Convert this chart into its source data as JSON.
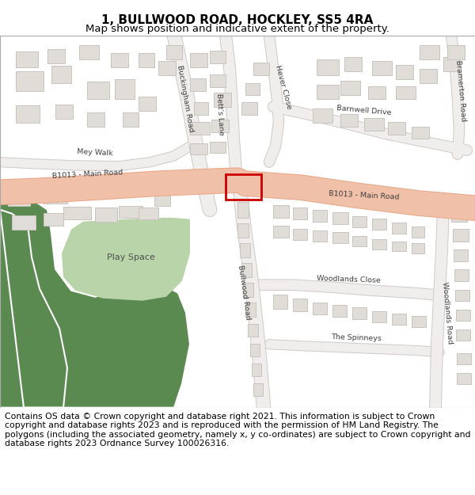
{
  "title": "1, BULLWOOD ROAD, HOCKLEY, SS5 4RA",
  "subtitle": "Map shows position and indicative extent of the property.",
  "footer_text": "Contains OS data © Crown copyright and database right 2021. This information is subject to Crown copyright and database rights 2023 and is reproduced with the permission of HM Land Registry. The polygons (including the associated geometry, namely x, y co-ordinates) are subject to Crown copyright and database rights 2023 Ordnance Survey 100026316.",
  "title_fontsize": 11,
  "subtitle_fontsize": 9.5,
  "footer_fontsize": 7.8,
  "bg_color": "#ffffff",
  "map_bg": "#ffffff",
  "road_color_main": "#f0c0a8",
  "road_outline_main": "#e8a888",
  "road_color_secondary": "#f0eeec",
  "road_outline_secondary": "#d0ccc8",
  "building_fill": "#e0dcd8",
  "building_edge": "#c8c4c0",
  "green_light": "#b8d4a8",
  "green_dark": "#5a8a50",
  "highlight_rect_color": "#cc0000",
  "label_color": "#404040",
  "road_label_b1013_left": "B1013 - Main Road",
  "road_label_b1013_right": "B1013 - Main Road",
  "road_label_bullwood": "Bullwood Road",
  "road_label_betts": "Bett's Lane",
  "road_label_mey": "Mey Walk",
  "road_label_barnwell": "Barnwell Drive",
  "road_label_hever": "Hever Close",
  "road_label_buckingham": "Buckingham Road",
  "road_label_bramerton": "Bramerton Road",
  "road_label_woodlands_close": "Woodlands Close",
  "road_label_woodlands_road": "Woodlands Road",
  "road_label_spinneys": "The Spinneys",
  "play_space_label": "Play Space"
}
